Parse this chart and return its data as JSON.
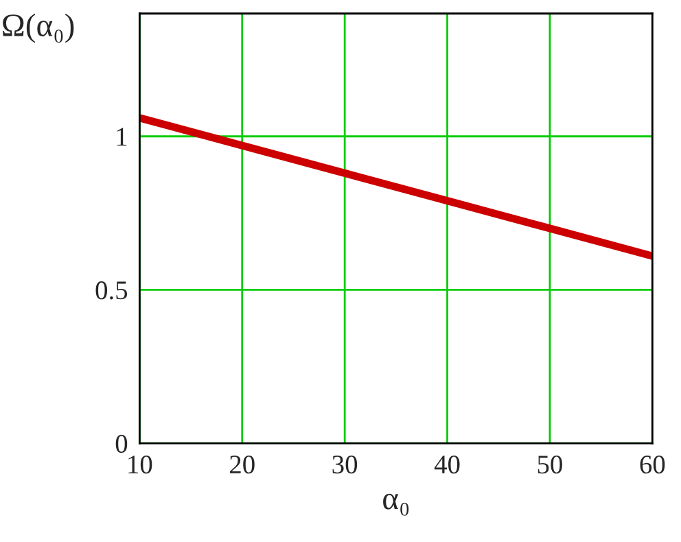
{
  "chart_data": {
    "type": "line",
    "xlabel": "α₀",
    "ylabel": "Ω(α₀)",
    "x": [
      10,
      20,
      30,
      40,
      50,
      60
    ],
    "series": [
      {
        "color": "#cc0000",
        "values": [
          1.06,
          0.97,
          0.88,
          0.79,
          0.7,
          0.61
        ]
      }
    ],
    "xlim": [
      10,
      60
    ],
    "xticks": [
      10,
      20,
      30,
      40,
      50,
      60
    ],
    "ylim": [
      0,
      1.4
    ],
    "yticks": [
      0,
      0.5,
      1
    ],
    "grid": true
  }
}
